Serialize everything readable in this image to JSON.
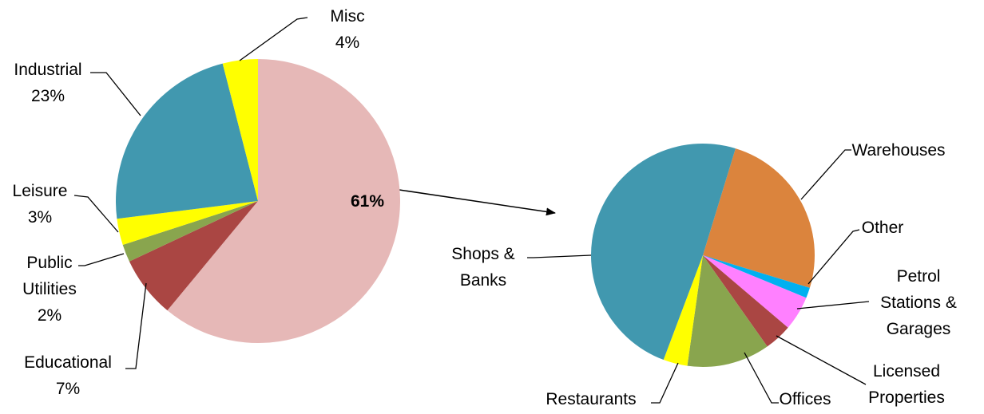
{
  "chart_data": [
    {
      "type": "pie",
      "categories": [
        null,
        "Educational",
        "Public Utilities",
        "Leisure",
        "Industrial",
        "Misc"
      ],
      "values": [
        61,
        7,
        2,
        3,
        23,
        4
      ],
      "value_labels": [
        "61%",
        "7%",
        "2%",
        "3%",
        "23%",
        "4%"
      ],
      "colors": [
        "#e6b8b7",
        "#aa4643",
        "#89a54e",
        "#ffff00",
        "#4198af",
        "#ffff00"
      ]
    },
    {
      "type": "pie",
      "categories": [
        "Warehouses",
        "Other",
        "Petrol Stations & Garages",
        "Licensed Properties",
        "Offices",
        "Restaurants",
        "Shops & Banks"
      ],
      "values": [
        25,
        1.5,
        5,
        4,
        12,
        3.5,
        49
      ],
      "colors": [
        "#db843d",
        "#00b0f0",
        "#ff80ff",
        "#aa4643",
        "#89a54e",
        "#ffff00",
        "#4198af"
      ]
    }
  ]
}
